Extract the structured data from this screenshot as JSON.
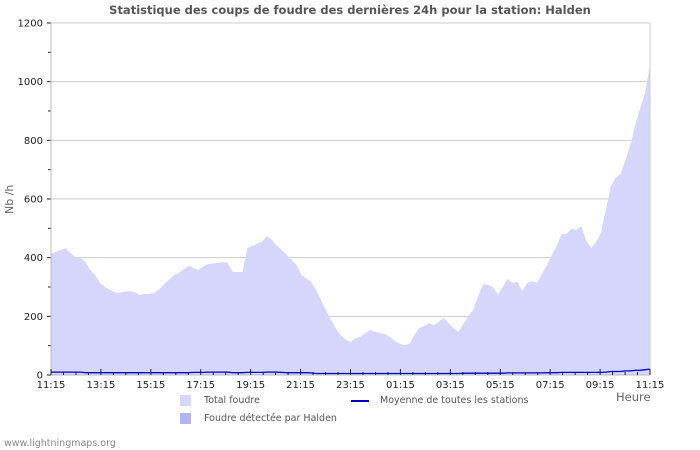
{
  "title": "Statistique des coups de foudre des dernières 24h pour la station: Halden",
  "footer": "www.lightningmaps.org",
  "colors": {
    "total_fill": "#d6d6fc",
    "station_fill": "#b4b4f4",
    "avg_line": "#0000cc",
    "grid": "#cccccc",
    "axis": "#bbbbbb"
  },
  "legend": {
    "total": "Total foudre",
    "station": "Foudre détectée par Halden",
    "avg": "Moyenne de toutes les stations"
  },
  "chart_data": {
    "type": "area",
    "title": "Statistique des coups de foudre des dernières 24h pour la station: Halden",
    "xlabel": "Heure",
    "ylabel": "Nb /h",
    "ylim": [
      0,
      1200
    ],
    "yticks": [
      0,
      200,
      400,
      600,
      800,
      1000,
      1200
    ],
    "xticks": [
      "11:15",
      "13:15",
      "15:15",
      "17:15",
      "19:15",
      "21:15",
      "23:15",
      "01:15",
      "03:15",
      "05:15",
      "07:15",
      "09:15",
      "11:15"
    ],
    "grid": true,
    "legend_position": "bottom",
    "x_start": "11:15",
    "x_end": "11:15",
    "interval_minutes": 15,
    "series": [
      {
        "name": "Total foudre",
        "type": "area",
        "values": [
          413,
          420,
          426,
          433,
          415,
          402,
          400,
          385,
          358,
          340,
          314,
          300,
          290,
          282,
          280,
          284,
          286,
          282,
          273,
          276,
          276,
          280,
          290,
          310,
          324,
          340,
          348,
          360,
          372,
          365,
          358,
          370,
          378,
          380,
          382,
          385,
          382,
          351,
          351,
          351,
          433,
          440,
          447,
          455,
          474,
          460,
          440,
          426,
          410,
          392,
          375,
          341,
          330,
          317,
          290,
          256,
          220,
          188,
          160,
          136,
          120,
          112,
          125,
          130,
          143,
          153,
          148,
          143,
          140,
          130,
          116,
          106,
          102,
          106,
          136,
          160,
          167,
          177,
          170,
          182,
          194,
          177,
          160,
          147,
          174,
          200,
          222,
          269,
          310,
          307,
          300,
          273,
          300,
          327,
          314,
          317,
          286,
          314,
          320,
          314,
          344,
          375,
          410,
          440,
          481,
          481,
          498,
          494,
          508,
          457,
          433,
          453,
          484,
          563,
          641,
          672,
          685,
          733,
          784,
          852,
          910,
          962,
          1057
        ]
      },
      {
        "name": "Foudre détectée par Halden",
        "type": "area",
        "values": []
      },
      {
        "name": "Moyenne de toutes les stations",
        "type": "line",
        "values": [
          10,
          10,
          10,
          10,
          10,
          10,
          10,
          8,
          8,
          8,
          8,
          8,
          8,
          8,
          8,
          8,
          8,
          8,
          8,
          8,
          8,
          8,
          8,
          8,
          8,
          8,
          8,
          8,
          8,
          9,
          9,
          9,
          10,
          10,
          10,
          10,
          10,
          8,
          8,
          8,
          9,
          9,
          9,
          9,
          10,
          10,
          10,
          9,
          8,
          8,
          8,
          8,
          8,
          7,
          5,
          5,
          5,
          5,
          5,
          5,
          5,
          5,
          5,
          5,
          5,
          5,
          5,
          5,
          5,
          5,
          5,
          5,
          5,
          5,
          5,
          5,
          5,
          5,
          5,
          5,
          5,
          5,
          5,
          5,
          6,
          6,
          6,
          6,
          6,
          6,
          6,
          6,
          6,
          7,
          7,
          7,
          7,
          7,
          7,
          7,
          7,
          8,
          8,
          8,
          9,
          9,
          9,
          9,
          9,
          9,
          9,
          9,
          9,
          10,
          12,
          12,
          12,
          14,
          14,
          16,
          16,
          18,
          20
        ]
      }
    ]
  }
}
